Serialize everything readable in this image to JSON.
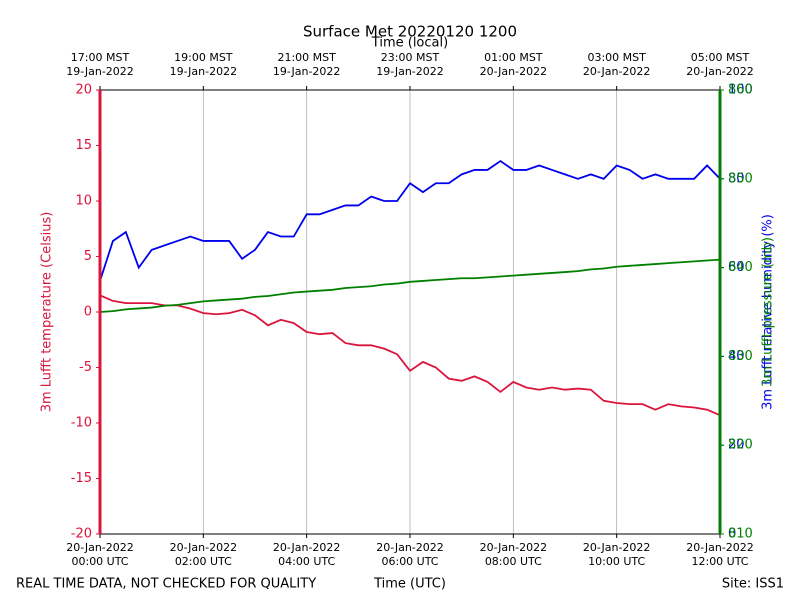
{
  "chart_data": {
    "type": "line",
    "title": "Surface Met 20220120 1200",
    "top_axis_label": "Time (local)",
    "x_label": "Time (UTC)",
    "y_label": "3m Lufft temperature (Celsius)",
    "y2_label": "3m Lufft relative humidity (%)",
    "y3_label": "3m Lufft pressure (mb)",
    "footer_left": "REAL TIME DATA, NOT CHECKED FOR QUALITY",
    "footer_right": "Site: ISS1",
    "grid": true,
    "xlim": [
      0,
      12
    ],
    "xticks": [
      {
        "value": 0,
        "label": "20-Jan-2022\n00:00 UTC"
      },
      {
        "value": 2,
        "label": "20-Jan-2022\n02:00 UTC"
      },
      {
        "value": 4,
        "label": "20-Jan-2022\n04:00 UTC"
      },
      {
        "value": 6,
        "label": "20-Jan-2022\n06:00 UTC"
      },
      {
        "value": 8,
        "label": "20-Jan-2022\n08:00 UTC"
      },
      {
        "value": 10,
        "label": "20-Jan-2022\n10:00 UTC"
      },
      {
        "value": 12,
        "label": "20-Jan-2022\n12:00 UTC"
      }
    ],
    "top_xticks": [
      {
        "value": 0,
        "label": "17:00 MST\n19-Jan-2022"
      },
      {
        "value": 2,
        "label": "19:00 MST\n19-Jan-2022"
      },
      {
        "value": 4,
        "label": "21:00 MST\n19-Jan-2022"
      },
      {
        "value": 6,
        "label": "23:00 MST\n19-Jan-2022"
      },
      {
        "value": 8,
        "label": "01:00 MST\n20-Jan-2022"
      },
      {
        "value": 10,
        "label": "03:00 MST\n20-Jan-2022"
      },
      {
        "value": 12,
        "label": "05:00 MST\n20-Jan-2022"
      }
    ],
    "ylim": [
      -20,
      20
    ],
    "yticks": [
      -20,
      -15,
      -10,
      -5,
      0,
      5,
      10,
      15,
      20
    ],
    "y2lim": [
      0,
      100
    ],
    "y2ticks": [
      0,
      20,
      40,
      60,
      80,
      100
    ],
    "y3lim": [
      810,
      860
    ],
    "y3ticks": [
      810,
      820,
      830,
      840,
      850,
      860
    ],
    "x": [
      0,
      0.25,
      0.5,
      0.75,
      1,
      1.25,
      1.5,
      1.75,
      2,
      2.25,
      2.5,
      2.75,
      3,
      3.25,
      3.5,
      3.75,
      4,
      4.25,
      4.5,
      4.75,
      5,
      5.25,
      5.5,
      5.75,
      6,
      6.25,
      6.5,
      6.75,
      7,
      7.25,
      7.5,
      7.75,
      8,
      8.25,
      8.5,
      8.75,
      9,
      9.25,
      9.5,
      9.75,
      10,
      10.25,
      10.5,
      10.75,
      11,
      11.25,
      11.5,
      11.75,
      12
    ],
    "series": [
      {
        "name": "3m Lufft temperature (Celsius)",
        "color": "#dc143c",
        "axis": "y",
        "values": [
          1.5,
          1.0,
          0.8,
          0.8,
          0.8,
          0.6,
          0.6,
          0.3,
          -0.1,
          -0.2,
          -0.1,
          0.2,
          -0.3,
          -1.2,
          -0.7,
          -1.0,
          -1.8,
          -2.0,
          -1.9,
          -2.8,
          -3.0,
          -3.0,
          -3.3,
          -3.8,
          -5.3,
          -4.5,
          -5.0,
          -6.0,
          -6.2,
          -5.8,
          -6.3,
          -7.2,
          -6.3,
          -6.8,
          -7.0,
          -6.8,
          -7.0,
          -6.9,
          -7.0,
          -8.0,
          -8.2,
          -8.3,
          -8.3,
          -8.8,
          -8.3,
          -8.5,
          -8.6,
          -8.8,
          -9.3
        ]
      },
      {
        "name": "3m Lufft relative humidity (%)",
        "color": "#0000ee",
        "axis": "y2",
        "values": [
          57,
          66,
          68,
          60,
          64,
          65,
          66,
          67,
          66,
          66,
          66,
          62,
          64,
          68,
          67,
          67,
          72,
          72,
          73,
          74,
          74,
          76,
          75,
          75,
          79,
          77,
          79,
          79,
          81,
          82,
          82,
          84,
          82,
          82,
          83,
          82,
          81,
          80,
          81,
          80,
          83,
          82,
          80,
          81,
          80,
          80,
          80,
          83,
          80
        ]
      },
      {
        "name": "3m Lufft pressure (mb)",
        "color": "#008000",
        "axis": "y3",
        "values": [
          835.0,
          835.1,
          835.3,
          835.4,
          835.5,
          835.7,
          835.8,
          836.0,
          836.2,
          836.3,
          836.4,
          836.5,
          836.7,
          836.8,
          837.0,
          837.2,
          837.3,
          837.4,
          837.5,
          837.7,
          837.8,
          837.9,
          838.1,
          838.2,
          838.4,
          838.5,
          838.6,
          838.7,
          838.8,
          838.8,
          838.9,
          839.0,
          839.1,
          839.2,
          839.3,
          839.4,
          839.5,
          839.6,
          839.8,
          839.9,
          840.1,
          840.2,
          840.3,
          840.4,
          840.5,
          840.6,
          840.7,
          840.8,
          840.9
        ]
      }
    ]
  }
}
